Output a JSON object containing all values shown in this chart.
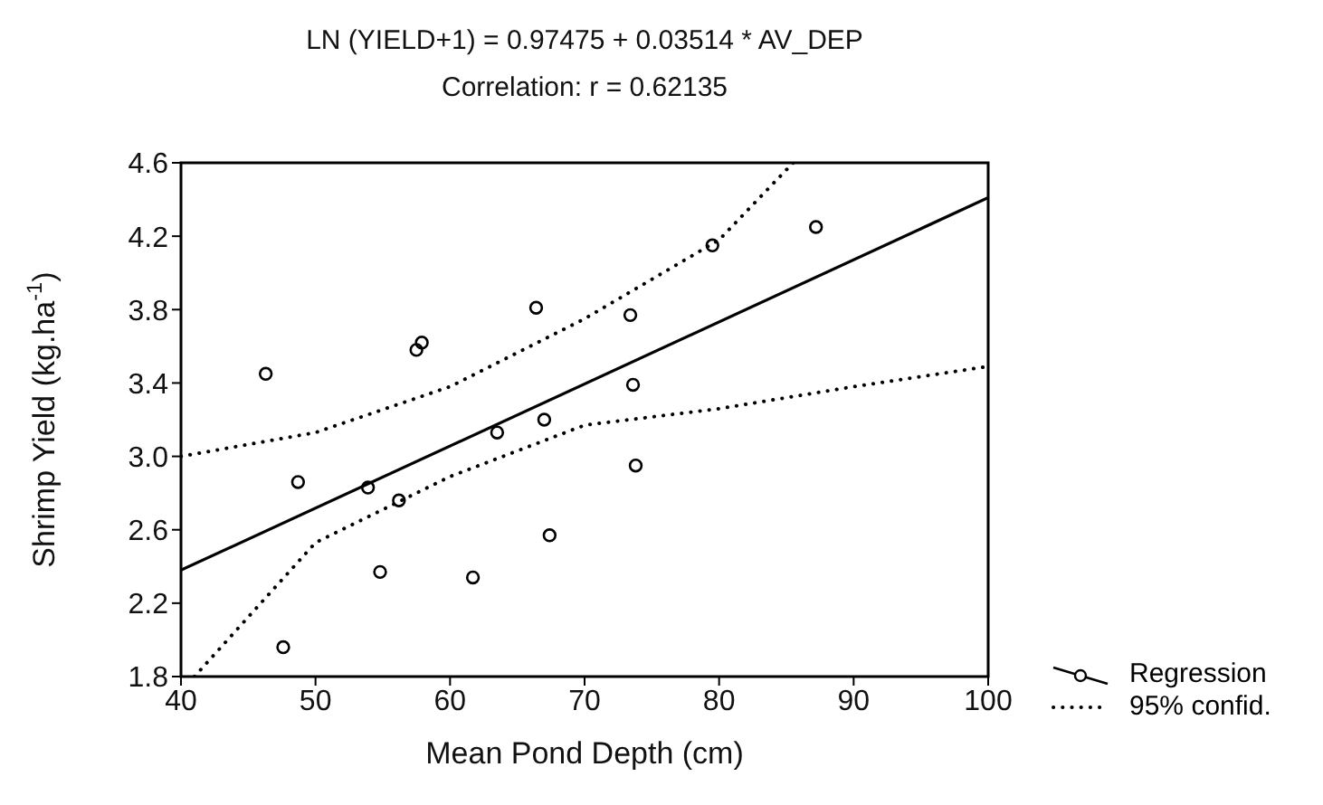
{
  "chart_data": {
    "type": "scatter",
    "title": "LN (YIELD+1) = 0.97475 + 0.03514 * AV_DEP",
    "subtitle": "Correlation: r = 0.62135",
    "xlabel": "Mean Pond Depth (cm)",
    "ylabel": "Shrimp Yield (kg.ha$^{-1}$)",
    "xlim": [
      40,
      100
    ],
    "xticks": [
      40,
      50,
      60,
      70,
      80,
      90,
      100
    ],
    "ylim": [
      1.8,
      4.6
    ],
    "yticks": [
      1.8,
      2.2,
      2.6,
      {
        "value": 3,
        "label": "3.0"
      },
      3.4,
      3.8,
      4.2,
      4.6
    ],
    "grid": false,
    "legend": "bottom right",
    "series": [
      {
        "marker": "circle",
        "color": "#000000",
        "x": [
          46.3,
          48.7,
          47.6,
          53.9,
          54.8,
          56.2,
          57.5,
          57.9,
          61.7,
          63.5,
          66.4,
          67.0,
          67.4,
          73.4,
          73.6,
          73.8,
          79.5,
          87.2
        ],
        "values": [
          3.45,
          2.86,
          1.96,
          2.83,
          2.37,
          2.76,
          3.58,
          3.62,
          2.34,
          3.13,
          3.81,
          3.2,
          2.57,
          3.77,
          3.39,
          2.95,
          4.15,
          4.25
        ]
      },
      {
        "type": "line",
        "name": "Regression",
        "color": "#000000",
        "line_style": "solid",
        "x": [
          40,
          100
        ],
        "values": [
          2.38,
          4.41
        ]
      },
      {
        "type": "line",
        "name": "95% confid.",
        "color": "#000000",
        "line_style": "dotted",
        "x": [
          40,
          50,
          60,
          70,
          80,
          85.5
        ],
        "values": [
          3.0,
          3.13,
          3.38,
          3.75,
          4.18,
          4.6
        ]
      },
      {
        "type": "line",
        "color": "#000000",
        "line_style": "dotted",
        "x": [
          41,
          50,
          60,
          70,
          80,
          90,
          100
        ],
        "values": [
          1.8,
          2.53,
          2.89,
          3.17,
          3.26,
          3.38,
          3.49
        ]
      }
    ]
  }
}
